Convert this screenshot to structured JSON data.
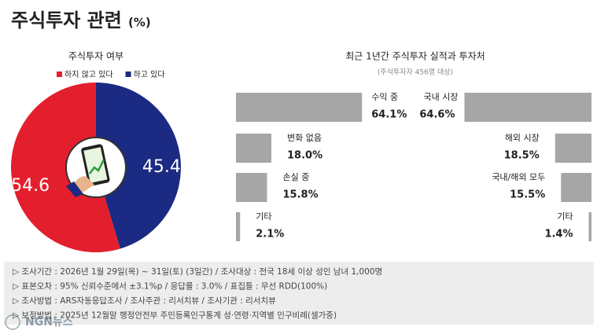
{
  "title": "주식투자 관련",
  "unit": "(%)",
  "chart_data": [
    {
      "type": "pie",
      "title": "주식투자 여부",
      "categories": [
        "하지 않고 있다",
        "하고 있다"
      ],
      "values": [
        54.6,
        45.4
      ],
      "colors": [
        "#e31f2d",
        "#1b2a83"
      ]
    },
    {
      "type": "bar",
      "title": "최근 1년간 주식투자 실적과 투자처",
      "subtitle": "(주식투자자 456명 대상)",
      "color": "#a6a6a6",
      "xlim": [
        0,
        100
      ],
      "panels": [
        {
          "side": "left",
          "categories": [
            "수익 중",
            "변화 없음",
            "손실 중",
            "기타"
          ],
          "values": [
            64.1,
            18.0,
            15.8,
            2.1
          ],
          "value_labels": [
            "64.1%",
            "18.0%",
            "15.8%",
            "2.1%"
          ]
        },
        {
          "side": "right",
          "categories": [
            "국내 시장",
            "해외 시장",
            "국내/해외 모두",
            "기타"
          ],
          "values": [
            64.6,
            18.5,
            15.5,
            1.4
          ],
          "value_labels": [
            "64.6%",
            "18.5%",
            "15.5%",
            "1.4%"
          ]
        }
      ]
    }
  ],
  "notes": [
    "▷ 조사기간 : 2026년 1월 29일(목) ~ 31일(토) (3일간) / 조사대상 : 전국 18세 이상 성인 남녀 1,000명",
    "▷ 표본오차 : 95% 신뢰수준에서 ±3.1%p / 응답률 : 3.0% / 표집틀 : 무선 RDD(100%)",
    "▷ 조사방법 : ARS자동응답조사 / 조사주관 : 리서치뷰 / 조사기관 : 리서치뷰",
    "▷ 보정방법 : 2025년 12월말 행정안전부 주민등록인구통계 성·연령·지역별 인구비례(셀가중)"
  ],
  "logo": "NGN뉴스"
}
